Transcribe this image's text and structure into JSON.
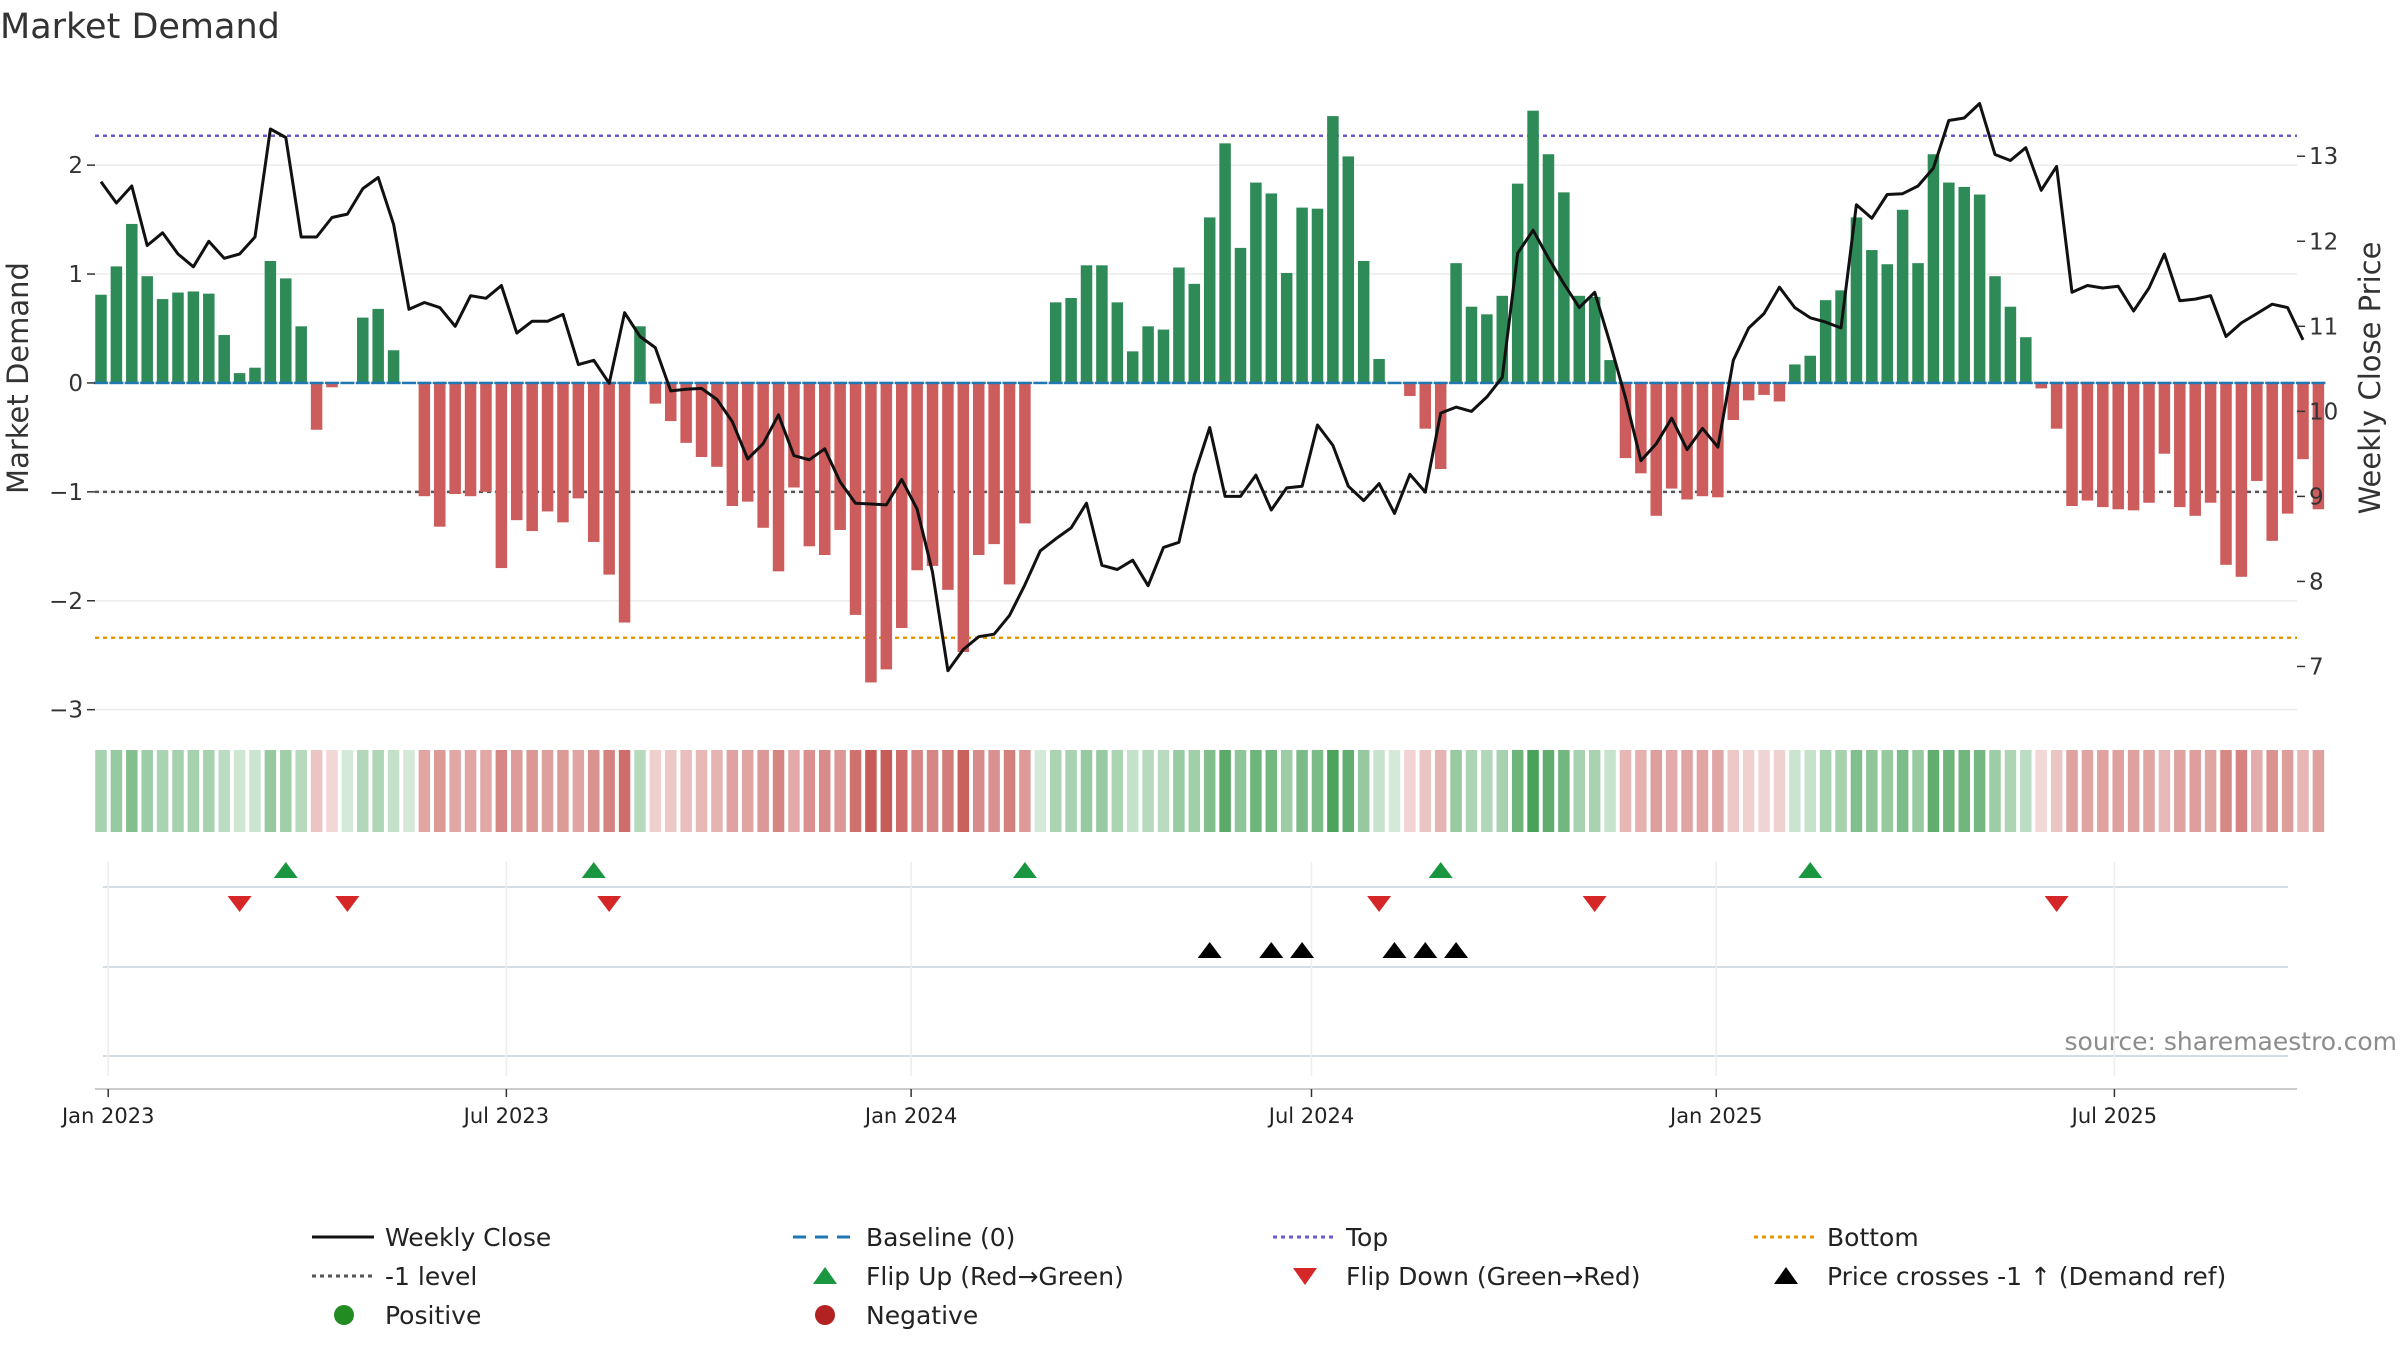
{
  "chart_data": {
    "type": "bar",
    "title": "Market Demand",
    "ylabel": "Market Demand",
    "y2label": "Weekly Close Price",
    "source": "source: sharemaestro.com",
    "ylim": [
      -3.15,
      2.8
    ],
    "y2lim": [
      6.3,
      13.92
    ],
    "yticks": [
      -3,
      -2,
      -1,
      0,
      1,
      2
    ],
    "y2ticks": [
      7,
      8,
      9,
      10,
      11,
      12,
      13
    ],
    "ytick_labels": [
      "−3",
      "−2",
      "−1",
      "0",
      "1",
      "2"
    ],
    "y2tick_labels": [
      "7",
      "8",
      "9",
      "10",
      "11",
      "12",
      "13"
    ],
    "xlim": [
      "2022-12-26",
      "2025-09-22"
    ],
    "xticks": [
      "2023-01-01",
      "2023-07-01",
      "2024-01-01",
      "2024-07-01",
      "2025-01-01",
      "2025-07-01"
    ],
    "xtick_labels": [
      "Jan 2023",
      "Jul 2023",
      "Jan 2024",
      "Jul 2024",
      "Jan 2025",
      "Jul 2025"
    ],
    "grid": true,
    "legend_position": "bottom",
    "reference_lines": {
      "top": 2.27,
      "bottom": -2.34,
      "minus_one": -1,
      "baseline": 0
    },
    "colors": {
      "positive_bar": "#2e8b57",
      "negative_bar": "#cd5c5c",
      "close_line": "#111111",
      "baseline": "#1f77b4",
      "top": "#6a5acd",
      "bottom": "#e69500",
      "minus_one": "#555555",
      "flip_up": "#1a9641",
      "flip_down": "#d62728",
      "cross_marker": "#000000",
      "positive_dot": "#228b22",
      "negative_dot": "#b22222"
    },
    "series": [
      {
        "name": "Market Demand",
        "start_week": "2022-12-26",
        "values": [
          0.81,
          1.07,
          1.46,
          0.98,
          0.77,
          0.83,
          0.84,
          0.82,
          0.44,
          0.09,
          0.14,
          1.12,
          0.96,
          0.52,
          -0.43,
          -0.04,
          0,
          0.6,
          0.68,
          0.3,
          0,
          -1.04,
          -1.32,
          -1.02,
          -1.04,
          -1.0,
          -1.7,
          -1.26,
          -1.36,
          -1.18,
          -1.28,
          -1.06,
          -1.46,
          -1.76,
          -2.2,
          0.52,
          -0.19,
          -0.35,
          -0.55,
          -0.68,
          -0.77,
          -1.13,
          -1.09,
          -1.33,
          -1.73,
          -0.96,
          -1.5,
          -1.58,
          -1.35,
          -2.13,
          -2.75,
          -2.63,
          -2.25,
          -1.72,
          -1.68,
          -1.9,
          -2.47,
          -1.58,
          -1.48,
          -1.85,
          -1.29,
          0,
          0.74,
          0.78,
          1.08,
          1.08,
          0.74,
          0.29,
          0.52,
          0.49,
          1.06,
          0.91,
          1.52,
          2.2,
          1.24,
          1.84,
          1.74,
          1.01,
          1.61,
          1.6,
          2.45,
          2.08,
          1.12,
          0.22,
          0,
          -0.12,
          -0.42,
          -0.79,
          1.1,
          0.7,
          0.63,
          0.8,
          1.83,
          2.5,
          2.1,
          1.75,
          0.8,
          0.79,
          0.21,
          -0.69,
          -0.83,
          -1.22,
          -0.97,
          -1.07,
          -1.04,
          -1.05,
          -0.34,
          -0.16,
          -0.11,
          -0.17,
          0.17,
          0.25,
          0.76,
          0.85,
          1.52,
          1.22,
          1.09,
          1.59,
          1.1,
          2.1,
          1.84,
          1.8,
          1.73,
          0.98,
          0.7,
          0.42,
          -0.05,
          -0.42,
          -1.13,
          -1.08,
          -1.14,
          -1.16,
          -1.17,
          -1.1,
          -0.65,
          -1.14,
          -1.22,
          -1.1,
          -1.67,
          -1.78,
          -0.9,
          -1.45,
          -1.2,
          -0.7,
          -1.16
        ]
      },
      {
        "name": "Weekly Close",
        "start_week": "2022-12-26",
        "values": [
          12.7,
          12.45,
          12.65,
          11.95,
          12.1,
          11.85,
          11.7,
          12.0,
          11.8,
          11.85,
          12.05,
          13.32,
          13.22,
          12.05,
          12.05,
          12.28,
          12.32,
          12.62,
          12.75,
          12.2,
          11.2,
          11.28,
          11.22,
          11.0,
          11.36,
          11.33,
          11.48,
          10.92,
          11.06,
          11.06,
          11.14,
          10.55,
          10.6,
          10.33,
          11.16,
          10.88,
          10.75,
          10.24,
          10.26,
          10.27,
          10.14,
          9.88,
          9.44,
          9.62,
          9.96,
          9.48,
          9.43,
          9.56,
          9.17,
          8.92,
          8.91,
          8.9,
          9.2,
          8.85,
          8.11,
          6.95,
          7.2,
          7.35,
          7.38,
          7.6,
          7.96,
          8.36,
          8.5,
          8.63,
          8.92,
          8.19,
          8.14,
          8.25,
          7.95,
          8.4,
          8.46,
          9.25,
          9.81,
          9.0,
          9.0,
          9.25,
          8.84,
          9.1,
          9.12,
          9.84,
          9.6,
          9.12,
          8.95,
          9.15,
          8.8,
          9.26,
          9.05,
          9.98,
          10.05,
          10.0,
          10.17,
          10.4,
          11.86,
          12.13,
          11.8,
          11.5,
          11.22,
          11.4,
          10.8,
          10.16,
          9.42,
          9.62,
          9.92,
          9.55,
          9.8,
          9.58,
          10.6,
          10.98,
          11.15,
          11.46,
          11.22,
          11.1,
          11.05,
          10.98,
          12.43,
          12.27,
          12.55,
          12.56,
          12.65,
          12.86,
          13.42,
          13.45,
          13.62,
          13.02,
          12.95,
          13.1,
          12.6,
          12.88,
          11.4,
          11.48,
          11.45,
          11.47,
          11.18,
          11.45,
          11.85,
          11.3,
          11.32,
          11.36,
          10.88,
          11.04,
          11.15,
          11.26,
          11.22,
          10.84
        ]
      }
    ],
    "flip_up_dates": [
      "2023-03-20",
      "2023-08-07",
      "2024-02-19",
      "2024-08-26",
      "2025-02-10"
    ],
    "flip_down_dates": [
      "2023-02-27",
      "2023-04-17",
      "2023-08-14",
      "2024-07-29",
      "2024-11-04",
      "2025-06-02"
    ],
    "cross_dates": [
      "2024-05-13",
      "2024-06-10",
      "2024-06-24",
      "2024-08-05",
      "2024-08-19",
      "2024-09-02"
    ],
    "legend": [
      {
        "label": "Weekly Close",
        "marker": "solid-line",
        "color": "#111111"
      },
      {
        "label": "Baseline (0)",
        "marker": "dashed-line",
        "color": "#1f77b4"
      },
      {
        "label": "Top",
        "marker": "dotted-line",
        "color": "#6a5acd"
      },
      {
        "label": "Bottom",
        "marker": "dotted-line",
        "color": "#e69500"
      },
      {
        "label": "-1 level",
        "marker": "dotted-line",
        "color": "#555555"
      },
      {
        "label": "Flip Up (Red→Green)",
        "marker": "triangle-up",
        "color": "#1a9641"
      },
      {
        "label": "Flip Down (Green→Red)",
        "marker": "triangle-down",
        "color": "#d62728"
      },
      {
        "label": "Price crosses -1 ↑ (Demand ref)",
        "marker": "triangle-up",
        "color": "#000000"
      },
      {
        "label": "Positive",
        "marker": "circle",
        "color": "#228b22"
      },
      {
        "label": "Negative",
        "marker": "circle",
        "color": "#b22222"
      }
    ]
  }
}
